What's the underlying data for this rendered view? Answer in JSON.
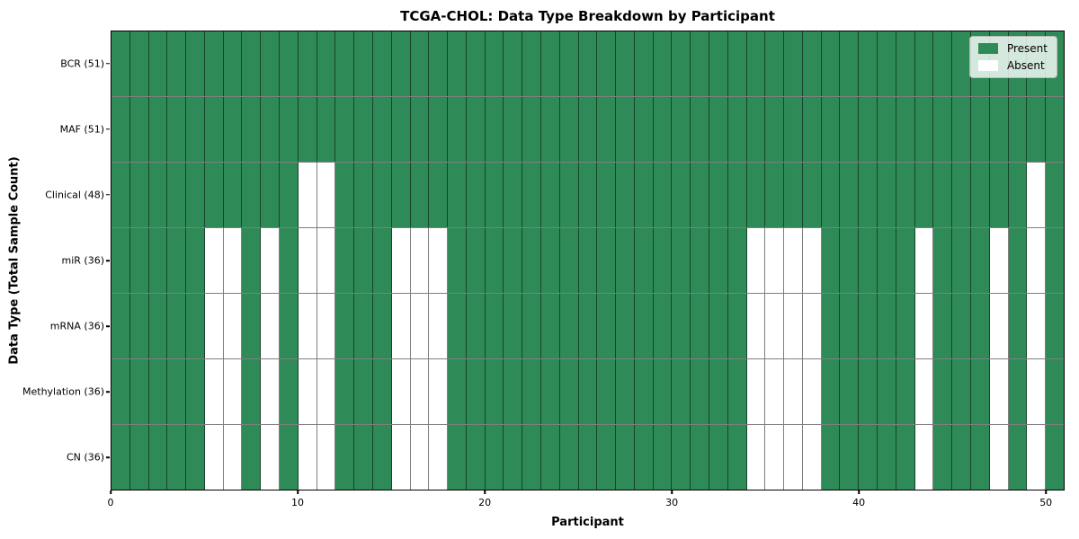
{
  "chart_data": {
    "type": "heatmap",
    "title": "TCGA-CHOL: Data Type Breakdown by Participant",
    "xlabel": "Participant",
    "ylabel": "Data Type (Total Sample Count)",
    "n_participants": 51,
    "x_range": [
      0,
      51
    ],
    "x_ticks": [
      0,
      10,
      20,
      30,
      40,
      50
    ],
    "grid": true,
    "legend_position": "upper-right",
    "colors": {
      "present": "#2e8b57",
      "absent": "#ffffff",
      "grid": "rgba(0,0,0,0.5)"
    },
    "legend": [
      {
        "label": "Present",
        "color_key": "present"
      },
      {
        "label": "Absent",
        "color_key": "absent"
      }
    ],
    "rows": [
      {
        "name": "BCR",
        "label": "BCR (51)",
        "present_count": 51,
        "absent_participants": []
      },
      {
        "name": "MAF",
        "label": "MAF (51)",
        "present_count": 51,
        "absent_participants": []
      },
      {
        "name": "Clinical",
        "label": "Clinical (48)",
        "present_count": 48,
        "absent_participants": [
          10,
          11,
          49
        ]
      },
      {
        "name": "miR",
        "label": "miR (36)",
        "present_count": 36,
        "absent_participants": [
          5,
          6,
          8,
          10,
          11,
          15,
          16,
          17,
          34,
          35,
          36,
          37,
          43,
          47,
          49
        ]
      },
      {
        "name": "mRNA",
        "label": "mRNA (36)",
        "present_count": 36,
        "absent_participants": [
          5,
          6,
          8,
          10,
          11,
          15,
          16,
          17,
          34,
          35,
          36,
          37,
          43,
          47,
          49
        ]
      },
      {
        "name": "Methylation",
        "label": "Methylation (36)",
        "present_count": 36,
        "absent_participants": [
          5,
          6,
          8,
          10,
          11,
          15,
          16,
          17,
          34,
          35,
          36,
          37,
          43,
          47,
          49
        ]
      },
      {
        "name": "CN",
        "label": "CN (36)",
        "present_count": 36,
        "absent_participants": [
          5,
          6,
          8,
          10,
          11,
          15,
          16,
          17,
          34,
          35,
          36,
          37,
          43,
          47,
          49
        ]
      }
    ]
  }
}
